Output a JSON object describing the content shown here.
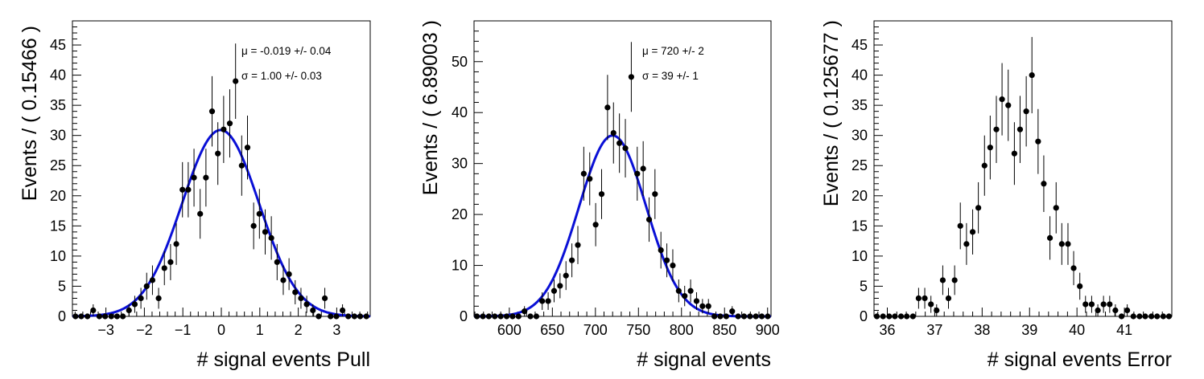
{
  "chart_data": [
    {
      "type": "scatter",
      "xlabel": "# signal events Pull",
      "ylabel": "Events / ( 0.15466 )",
      "xlim": [
        -3.87,
        3.87
      ],
      "ylim": [
        0,
        49
      ],
      "xticks": [
        -3,
        -2,
        -1,
        0,
        1,
        2,
        3
      ],
      "yticks": [
        0,
        5,
        10,
        15,
        20,
        25,
        30,
        35,
        40,
        45
      ],
      "series": [
        {
          "type": "points_with_errors",
          "x": [
            -3.79,
            -3.64,
            -3.48,
            -3.33,
            -3.17,
            -3.02,
            -2.86,
            -2.71,
            -2.56,
            -2.4,
            -2.25,
            -2.09,
            -1.94,
            -1.79,
            -1.63,
            -1.48,
            -1.32,
            -1.17,
            -1.01,
            -0.86,
            -0.71,
            -0.55,
            -0.4,
            -0.24,
            -0.09,
            0.06,
            0.22,
            0.37,
            0.53,
            0.68,
            0.84,
            0.99,
            1.14,
            1.3,
            1.45,
            1.61,
            1.76,
            1.92,
            2.07,
            2.22,
            2.38,
            2.53,
            2.69,
            2.84,
            2.99,
            3.15,
            3.3,
            3.46,
            3.61,
            3.77
          ],
          "y": [
            0,
            0,
            0,
            1,
            0,
            0,
            0,
            0,
            0,
            1,
            2,
            3,
            5,
            6,
            3,
            8,
            9,
            12,
            21,
            21,
            23,
            17,
            23,
            34,
            27,
            31,
            32,
            39,
            25,
            28,
            15,
            17,
            14,
            13,
            9,
            6,
            7,
            4,
            3,
            2,
            1,
            0,
            3,
            0,
            0,
            1,
            0,
            0,
            0,
            0
          ]
        },
        {
          "type": "gaussian_fit",
          "name": "",
          "mean": -0.019,
          "sigma": 1.0,
          "peak": 30.9,
          "color": "#0a10d6"
        }
      ],
      "annotations": [
        "μ = -0.019 +/- 0.04",
        "σ =  1.00 +/- 0.03"
      ]
    },
    {
      "type": "scatter",
      "xlabel": "# signal events",
      "ylabel": "Events / ( 6.89003 )",
      "xlim": [
        559,
        904
      ],
      "ylim": [
        0,
        58
      ],
      "xticks": [
        600,
        650,
        700,
        750,
        800,
        850,
        900
      ],
      "yticks": [
        0,
        10,
        20,
        30,
        40,
        50
      ],
      "series": [
        {
          "type": "points_with_errors",
          "x": [
            562.4,
            569.3,
            576.2,
            583.1,
            590.0,
            596.9,
            603.8,
            610.7,
            617.6,
            624.5,
            631.4,
            638.2,
            645.1,
            652.0,
            658.9,
            665.8,
            672.7,
            679.6,
            686.5,
            693.4,
            700.3,
            707.2,
            714.1,
            721.0,
            727.9,
            734.8,
            741.7,
            748.6,
            755.5,
            762.4,
            769.2,
            776.1,
            783.0,
            789.9,
            796.8,
            803.7,
            810.6,
            817.5,
            824.4,
            831.3,
            838.2,
            845.1,
            852.0,
            858.9,
            865.8,
            872.7,
            879.6,
            886.4,
            893.3,
            900.2
          ],
          "y": [
            0,
            0,
            0,
            0,
            0,
            0,
            0,
            0,
            1,
            0,
            0,
            3,
            3,
            5,
            6,
            8,
            11,
            14,
            28,
            27,
            18,
            24,
            41,
            36,
            34,
            33,
            47,
            28,
            29,
            19,
            24,
            13,
            11,
            10,
            5,
            4,
            5,
            3,
            2,
            2,
            0,
            0,
            0,
            1,
            0,
            0,
            0,
            0,
            0,
            0
          ]
        },
        {
          "type": "gaussian_fit",
          "name": "",
          "mean": 720,
          "sigma": 39,
          "peak": 35.5,
          "color": "#0a10d6"
        }
      ],
      "annotations": [
        "μ =  720 +/- 2",
        "σ =  39 +/- 1"
      ]
    },
    {
      "type": "scatter",
      "xlabel": "# signal events Error",
      "ylabel": "Events / ( 0.125677 )",
      "xlim": [
        35.72,
        42.0
      ],
      "ylim": [
        0,
        49
      ],
      "xticks": [
        36,
        37,
        38,
        39,
        40,
        41
      ],
      "yticks": [
        0,
        5,
        10,
        15,
        20,
        25,
        30,
        35,
        40,
        45
      ],
      "series": [
        {
          "type": "points_with_errors",
          "x": [
            35.78,
            35.91,
            36.04,
            36.16,
            36.29,
            36.41,
            36.54,
            36.66,
            36.79,
            36.92,
            37.04,
            37.17,
            37.29,
            37.42,
            37.54,
            37.67,
            37.8,
            37.92,
            38.05,
            38.17,
            38.3,
            38.42,
            38.55,
            38.68,
            38.8,
            38.93,
            39.05,
            39.18,
            39.3,
            39.43,
            39.56,
            39.68,
            39.81,
            39.93,
            40.06,
            40.18,
            40.31,
            40.44,
            40.56,
            40.69,
            40.81,
            40.94,
            41.06,
            41.19,
            41.32,
            41.44,
            41.57,
            41.69,
            41.82,
            41.94
          ],
          "y": [
            0,
            0,
            0,
            0,
            0,
            0,
            0,
            3,
            3,
            2,
            1,
            6,
            3,
            6,
            15,
            12,
            14,
            18,
            25,
            28,
            31,
            36,
            35,
            27,
            31,
            34,
            40,
            29,
            22,
            13,
            18,
            12,
            12,
            8,
            5,
            2,
            2,
            1,
            2,
            2,
            1,
            0,
            1,
            0,
            0,
            0,
            0,
            0,
            0,
            0
          ]
        }
      ],
      "annotations": []
    }
  ]
}
